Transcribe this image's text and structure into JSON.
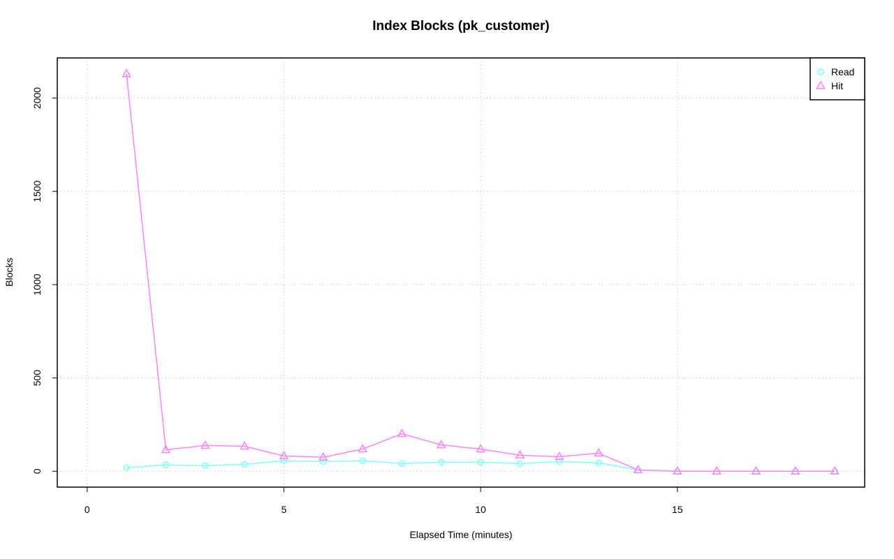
{
  "chart_data": {
    "type": "line",
    "title": "Index Blocks (pk_customer)",
    "x_label": "Elapsed Time (minutes)",
    "y_label": "Blocks",
    "x": [
      1,
      2,
      3,
      4,
      5,
      6,
      7,
      8,
      9,
      10,
      11,
      12,
      13,
      14,
      15,
      16,
      17,
      18,
      19
    ],
    "series": [
      {
        "name": "Read",
        "color": "#80ffff",
        "marker": "circle",
        "values": [
          19,
          34,
          30,
          37,
          56,
          52,
          56,
          41,
          48,
          48,
          41,
          52,
          45,
          7,
          0,
          0,
          0,
          0,
          0
        ]
      },
      {
        "name": "Hit",
        "color": "#ff80ff",
        "marker": "triangle",
        "values": [
          2130,
          115,
          138,
          134,
          82,
          75,
          119,
          201,
          141,
          119,
          86,
          78,
          97,
          7,
          0,
          0,
          0,
          0,
          0
        ]
      }
    ],
    "xlim": [
      -0.76,
      19.76
    ],
    "ylim": [
      -85,
      2215
    ],
    "xticks": [
      0,
      5,
      10,
      15
    ],
    "yticks": [
      0,
      500,
      1000,
      1500,
      2000
    ],
    "grid": true,
    "legend": "top-right"
  }
}
